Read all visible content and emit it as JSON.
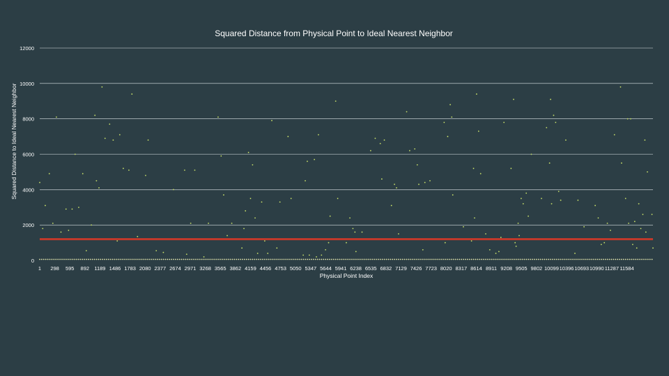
{
  "chart_data": {
    "type": "scatter",
    "title": "Squared Distance  from Physical Point to Ideal Nearest Neighbor",
    "xlabel": "Physical Point Index",
    "ylabel": "Squared Distance to Ideal Nearest Neighbor",
    "ylim": [
      0,
      12000
    ],
    "y_ticks": [
      "0",
      "2000",
      "4000",
      "6000",
      "8000",
      "10000",
      "12000"
    ],
    "xlim": [
      1,
      11584
    ],
    "x_ticks": [
      "1",
      "298",
      "595",
      "892",
      "1189",
      "1486",
      "1783",
      "2080",
      "2377",
      "2674",
      "2971",
      "3268",
      "3565",
      "3862",
      "4159",
      "4456",
      "4753",
      "5050",
      "5347",
      "5644",
      "5941",
      "6238",
      "6535",
      "6832",
      "7129",
      "7426",
      "7723",
      "8020",
      "8317",
      "8614",
      "8911",
      "9208",
      "9505",
      "9802",
      "10099",
      "10396",
      "10693",
      "10990",
      "11287",
      "11584"
    ],
    "reference_line": {
      "y": 1200,
      "color": "#c0392b"
    },
    "grid": "horizontal",
    "point_color": "#c8e06a",
    "baseline_color": "#e6e9b0",
    "series": [
      {
        "points": [
          [
            1,
            4400
          ],
          [
            60,
            1800
          ],
          [
            110,
            3100
          ],
          [
            190,
            4900
          ],
          [
            260,
            2100
          ],
          [
            330,
            8100
          ],
          [
            420,
            1600
          ],
          [
            520,
            2900
          ],
          [
            570,
            1700
          ],
          [
            640,
            2900
          ],
          [
            700,
            6000
          ],
          [
            770,
            3000
          ],
          [
            850,
            4900
          ],
          [
            920,
            550
          ],
          [
            1020,
            2000
          ],
          [
            1090,
            8200
          ],
          [
            1120,
            4500
          ],
          [
            1170,
            4100
          ],
          [
            1230,
            9800
          ],
          [
            1290,
            6900
          ],
          [
            1380,
            7700
          ],
          [
            1450,
            6800
          ],
          [
            1530,
            1100
          ],
          [
            1580,
            7100
          ],
          [
            1650,
            5200
          ],
          [
            1760,
            5100
          ],
          [
            1820,
            9400
          ],
          [
            1930,
            1350
          ],
          [
            2090,
            4800
          ],
          [
            2140,
            6800
          ],
          [
            2300,
            550
          ],
          [
            2440,
            450
          ],
          [
            2640,
            4000
          ],
          [
            2860,
            5100
          ],
          [
            2900,
            350
          ],
          [
            2980,
            2100
          ],
          [
            3060,
            5100
          ],
          [
            3240,
            200
          ],
          [
            3330,
            2100
          ],
          [
            3520,
            8100
          ],
          [
            3580,
            5900
          ],
          [
            3630,
            3700
          ],
          [
            3700,
            1400
          ],
          [
            3790,
            2100
          ],
          [
            3990,
            700
          ],
          [
            4030,
            1800
          ],
          [
            4060,
            2800
          ],
          [
            4120,
            6100
          ],
          [
            4160,
            3500
          ],
          [
            4200,
            5400
          ],
          [
            4250,
            2400
          ],
          [
            4300,
            400
          ],
          [
            4380,
            3300
          ],
          [
            4440,
            1100
          ],
          [
            4500,
            400
          ],
          [
            4580,
            7900
          ],
          [
            4680,
            700
          ],
          [
            4740,
            3300
          ],
          [
            4900,
            7000
          ],
          [
            4960,
            3500
          ],
          [
            5200,
            300
          ],
          [
            5240,
            4500
          ],
          [
            5280,
            5600
          ],
          [
            5320,
            300
          ],
          [
            5420,
            5700
          ],
          [
            5460,
            200
          ],
          [
            5500,
            7100
          ],
          [
            5560,
            300
          ],
          [
            5640,
            600
          ],
          [
            5700,
            1000
          ],
          [
            5730,
            2500
          ],
          [
            5840,
            9000
          ],
          [
            5880,
            3500
          ],
          [
            6050,
            1000
          ],
          [
            6120,
            2400
          ],
          [
            6180,
            1800
          ],
          [
            6220,
            1600
          ],
          [
            6240,
            500
          ],
          [
            6360,
            1600
          ],
          [
            6530,
            6200
          ],
          [
            6620,
            6900
          ],
          [
            6720,
            6600
          ],
          [
            6750,
            4600
          ],
          [
            6800,
            6800
          ],
          [
            6940,
            3100
          ],
          [
            7000,
            4300
          ],
          [
            7040,
            4100
          ],
          [
            7080,
            1500
          ],
          [
            7240,
            8400
          ],
          [
            7300,
            6200
          ],
          [
            7400,
            6300
          ],
          [
            7450,
            5400
          ],
          [
            7480,
            4300
          ],
          [
            7560,
            600
          ],
          [
            7600,
            4400
          ],
          [
            7700,
            4500
          ],
          [
            7980,
            7800
          ],
          [
            8000,
            1000
          ],
          [
            8050,
            7000
          ],
          [
            8100,
            8800
          ],
          [
            8130,
            8100
          ],
          [
            8150,
            3700
          ],
          [
            8360,
            1900
          ],
          [
            8520,
            1100
          ],
          [
            8560,
            5200
          ],
          [
            8580,
            2400
          ],
          [
            8620,
            9400
          ],
          [
            8660,
            7300
          ],
          [
            8700,
            4900
          ],
          [
            8800,
            1500
          ],
          [
            8880,
            600
          ],
          [
            9000,
            400
          ],
          [
            9060,
            500
          ],
          [
            9100,
            1300
          ],
          [
            9160,
            7800
          ],
          [
            9300,
            5200
          ],
          [
            9350,
            9100
          ],
          [
            9380,
            1000
          ],
          [
            9400,
            800
          ],
          [
            9440,
            2100
          ],
          [
            9460,
            1400
          ],
          [
            9500,
            3500
          ],
          [
            9540,
            3200
          ],
          [
            9600,
            3800
          ],
          [
            9640,
            2500
          ],
          [
            9700,
            6000
          ],
          [
            9900,
            3500
          ],
          [
            10000,
            7500
          ],
          [
            10040,
            1200
          ],
          [
            10060,
            5500
          ],
          [
            10080,
            9100
          ],
          [
            10100,
            3200
          ],
          [
            10140,
            8200
          ],
          [
            10180,
            7800
          ],
          [
            10240,
            3900
          ],
          [
            10280,
            3400
          ],
          [
            10380,
            6800
          ],
          [
            10560,
            400
          ],
          [
            10620,
            3400
          ],
          [
            10740,
            1900
          ],
          [
            10960,
            3100
          ],
          [
            11020,
            2400
          ],
          [
            11080,
            900
          ],
          [
            11140,
            1000
          ],
          [
            11200,
            2100
          ],
          [
            11260,
            1700
          ],
          [
            11340,
            7100
          ],
          [
            11460,
            9800
          ],
          [
            11480,
            5500
          ],
          [
            11560,
            3500
          ],
          [
            11600,
            8000
          ],
          [
            11620,
            2100
          ],
          [
            11660,
            8000
          ],
          [
            11700,
            900
          ],
          [
            11740,
            2200
          ],
          [
            11780,
            700
          ],
          [
            11820,
            3200
          ],
          [
            11860,
            1800
          ],
          [
            11900,
            2600
          ],
          [
            11940,
            6800
          ],
          [
            11960,
            1600
          ],
          [
            11990,
            5000
          ],
          [
            12080,
            2600
          ],
          [
            12100,
            700
          ]
        ]
      }
    ]
  }
}
